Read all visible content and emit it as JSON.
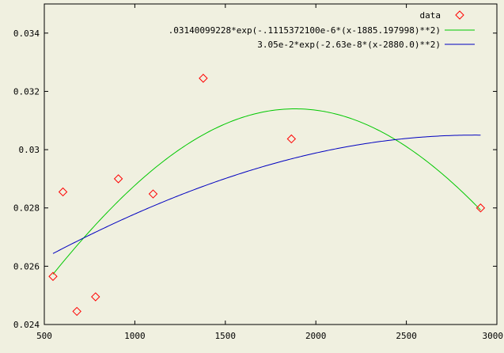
{
  "colors": {
    "background": "#f0f0e0",
    "axes": "#000000",
    "data_points": "#ff0000",
    "series_green": "#00c800",
    "series_blue": "#0000c0"
  },
  "chart_data": {
    "type": "scatter",
    "title": "",
    "xlabel": "",
    "ylabel": "",
    "xlim": [
      500,
      3000
    ],
    "ylim": [
      0.024,
      0.035
    ],
    "grid": false,
    "legend_position": "top-right",
    "x_ticks": [
      500,
      1000,
      1500,
      2000,
      2500,
      3000
    ],
    "x_tick_labels": [
      "500",
      "1000",
      "1500",
      "2000",
      "2500",
      "3000"
    ],
    "y_ticks": [
      0.024,
      0.026,
      0.028,
      0.03,
      0.032,
      0.034
    ],
    "y_tick_labels": [
      "0.024",
      "0.026",
      "0.028",
      "0.03",
      "0.032",
      "0.034"
    ],
    "series": [
      {
        "name": "data",
        "kind": "points",
        "marker": "diamond",
        "x": [
          548,
          603,
          680,
          783,
          909,
          1101,
          1378,
          1865,
          2910
        ],
        "y": [
          0.02565,
          0.02855,
          0.02445,
          0.02495,
          0.029,
          0.02848,
          0.03245,
          0.03037,
          0.028
        ]
      },
      {
        "name": ".03140099228*exp(-.1115372100e-6*(x-1885.197998)**2)",
        "kind": "function",
        "amplitude": 0.03140099228,
        "coefficient": 1.1153721e-07,
        "center": 1885.197998,
        "x_range": [
          548,
          2910
        ]
      },
      {
        "name": "3.05e-2*exp(-2.63e-8*(x-2880.0)**2)",
        "kind": "function",
        "amplitude": 0.0305,
        "coefficient": 2.63e-08,
        "center": 2880.0,
        "x_range": [
          548,
          2910
        ]
      }
    ]
  }
}
